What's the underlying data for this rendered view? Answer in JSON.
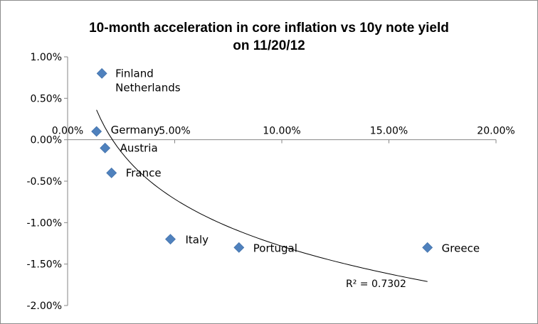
{
  "chart_data": {
    "type": "scatter",
    "title_lines": [
      "10-month acceleration in core inflation vs 10y note yield",
      "on 11/20/12"
    ],
    "xlabel": "",
    "ylabel": "",
    "xlim": [
      0,
      0.2
    ],
    "ylim": [
      -0.02,
      0.01
    ],
    "x_ticks": [
      {
        "value": 0.0,
        "label": "0.00%"
      },
      {
        "value": 0.05,
        "label": "5.00%"
      },
      {
        "value": 0.1,
        "label": "10.00%"
      },
      {
        "value": 0.15,
        "label": "15.00%"
      },
      {
        "value": 0.2,
        "label": "20.00%"
      }
    ],
    "y_ticks": [
      {
        "value": 0.01,
        "label": "1.00%"
      },
      {
        "value": 0.005,
        "label": "0.50%"
      },
      {
        "value": 0.0,
        "label": "0.00%"
      },
      {
        "value": -0.005,
        "label": "-0.50%"
      },
      {
        "value": -0.01,
        "label": "-1.00%"
      },
      {
        "value": -0.015,
        "label": "-1.50%"
      },
      {
        "value": -0.02,
        "label": "-2.00%"
      }
    ],
    "grid": false,
    "points": [
      {
        "label": "Finland\nNetherlands",
        "x": 0.016,
        "y": 0.008
      },
      {
        "label": "Germany",
        "x": 0.0135,
        "y": 0.001
      },
      {
        "label": "Austria",
        "x": 0.0175,
        "y": -0.001
      },
      {
        "label": "France",
        "x": 0.0205,
        "y": -0.004
      },
      {
        "label": "Italy",
        "x": 0.048,
        "y": -0.012
      },
      {
        "label": "Portugal",
        "x": 0.08,
        "y": -0.013
      },
      {
        "label": "Greece",
        "x": 0.168,
        "y": -0.013
      }
    ],
    "marker_color": "#4F81BD",
    "trendline": {
      "type": "logarithmic",
      "x_range": [
        0.0135,
        0.168
      ],
      "coef_a": -0.00821,
      "coef_b": -0.03175,
      "r2_label": "R² = 0.7302",
      "color": "#000000"
    }
  }
}
